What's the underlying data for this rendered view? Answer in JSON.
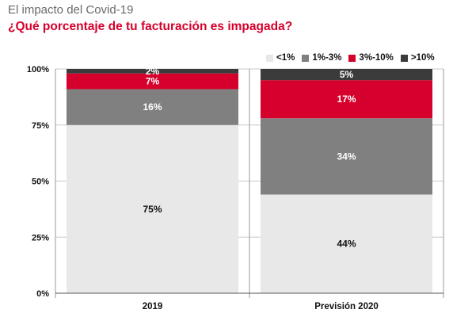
{
  "title": "El impacto del Covid-19",
  "subtitle": "¿Qué porcentaje de tu facturación es impagada?",
  "colors": {
    "lt1": "#e8e8e8",
    "r1to3": "#808080",
    "r3to10": "#d5002b",
    "gt10": "#3b3b3b"
  },
  "chart_data": {
    "type": "bar",
    "stacked": true,
    "categories": [
      "2019",
      "Previsión 2020"
    ],
    "series": [
      {
        "name": "<1%",
        "color_key": "lt1",
        "values": [
          75,
          44
        ],
        "labels": [
          "75%",
          "44%"
        ],
        "label_color": "#111111"
      },
      {
        "name": "1%-3%",
        "color_key": "r1to3",
        "values": [
          16,
          34
        ],
        "labels": [
          "16%",
          "34%"
        ],
        "label_color": "#ffffff"
      },
      {
        "name": "3%-10%",
        "color_key": "r3to10",
        "values": [
          7,
          17
        ],
        "labels": [
          "7%",
          "17%"
        ],
        "label_color": "#ffffff"
      },
      {
        "name": ">10%",
        "color_key": "gt10",
        "values": [
          2,
          5
        ],
        "labels": [
          "2%",
          "5%"
        ],
        "label_color": "#ffffff"
      }
    ],
    "ylim": [
      0,
      100
    ],
    "yticks": [
      0,
      25,
      50,
      75,
      100
    ],
    "ytick_labels": [
      "0%",
      "25%",
      "50%",
      "75%",
      "100%"
    ],
    "legend_position": "top-right",
    "grid": true
  }
}
